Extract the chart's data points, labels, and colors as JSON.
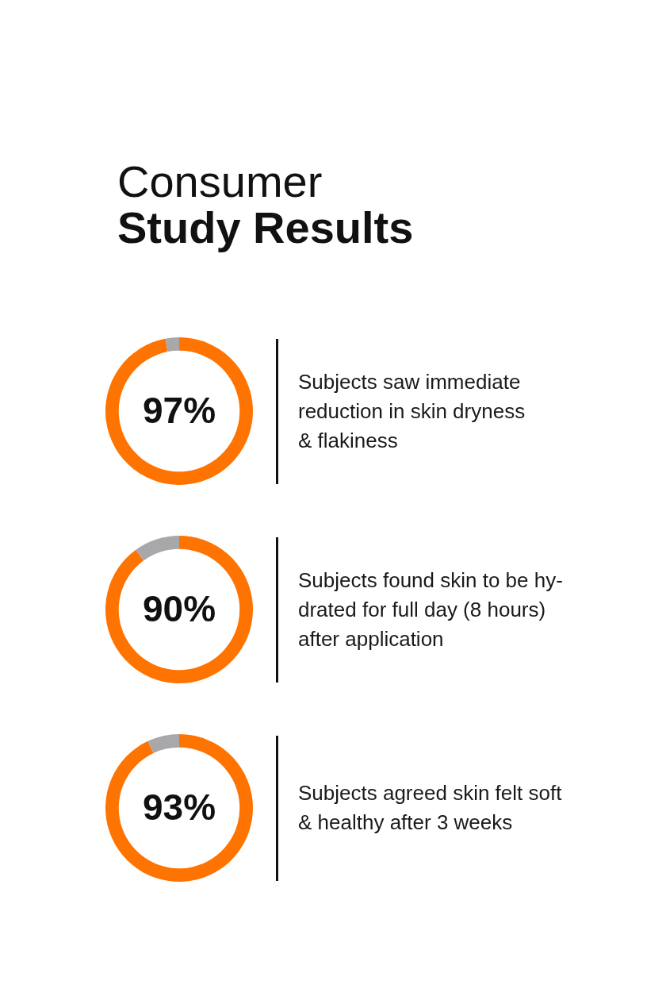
{
  "chart_data": [
    {
      "type": "donut",
      "title": "Consumer\nStudy Results",
      "categories": [
        null,
        null
      ],
      "values": [
        97,
        3
      ],
      "colors": [
        "#ff7300",
        "#a8a8aa"
      ],
      "value_labels": [
        "97%",
        null
      ],
      "annotations": [
        "Subjects saw immediate\nreduction in skin dryness\n& flakiness"
      ]
    },
    {
      "type": "donut",
      "categories": [
        null,
        null
      ],
      "values": [
        90,
        10
      ],
      "colors": [
        "#ff7300",
        "#a8a8aa"
      ],
      "value_labels": [
        "90%",
        null
      ],
      "annotations": [
        "Subjects found skin to be hy-\ndrated for full day (8 hours)\nafter application"
      ]
    },
    {
      "type": "donut",
      "categories": [
        null,
        null
      ],
      "values": [
        93,
        7
      ],
      "colors": [
        "#ff7300",
        "#a8a8aa"
      ],
      "value_labels": [
        "93%",
        null
      ],
      "annotations": [
        "Subjects agreed skin felt soft\n& healthy after 3 weeks"
      ]
    }
  ]
}
